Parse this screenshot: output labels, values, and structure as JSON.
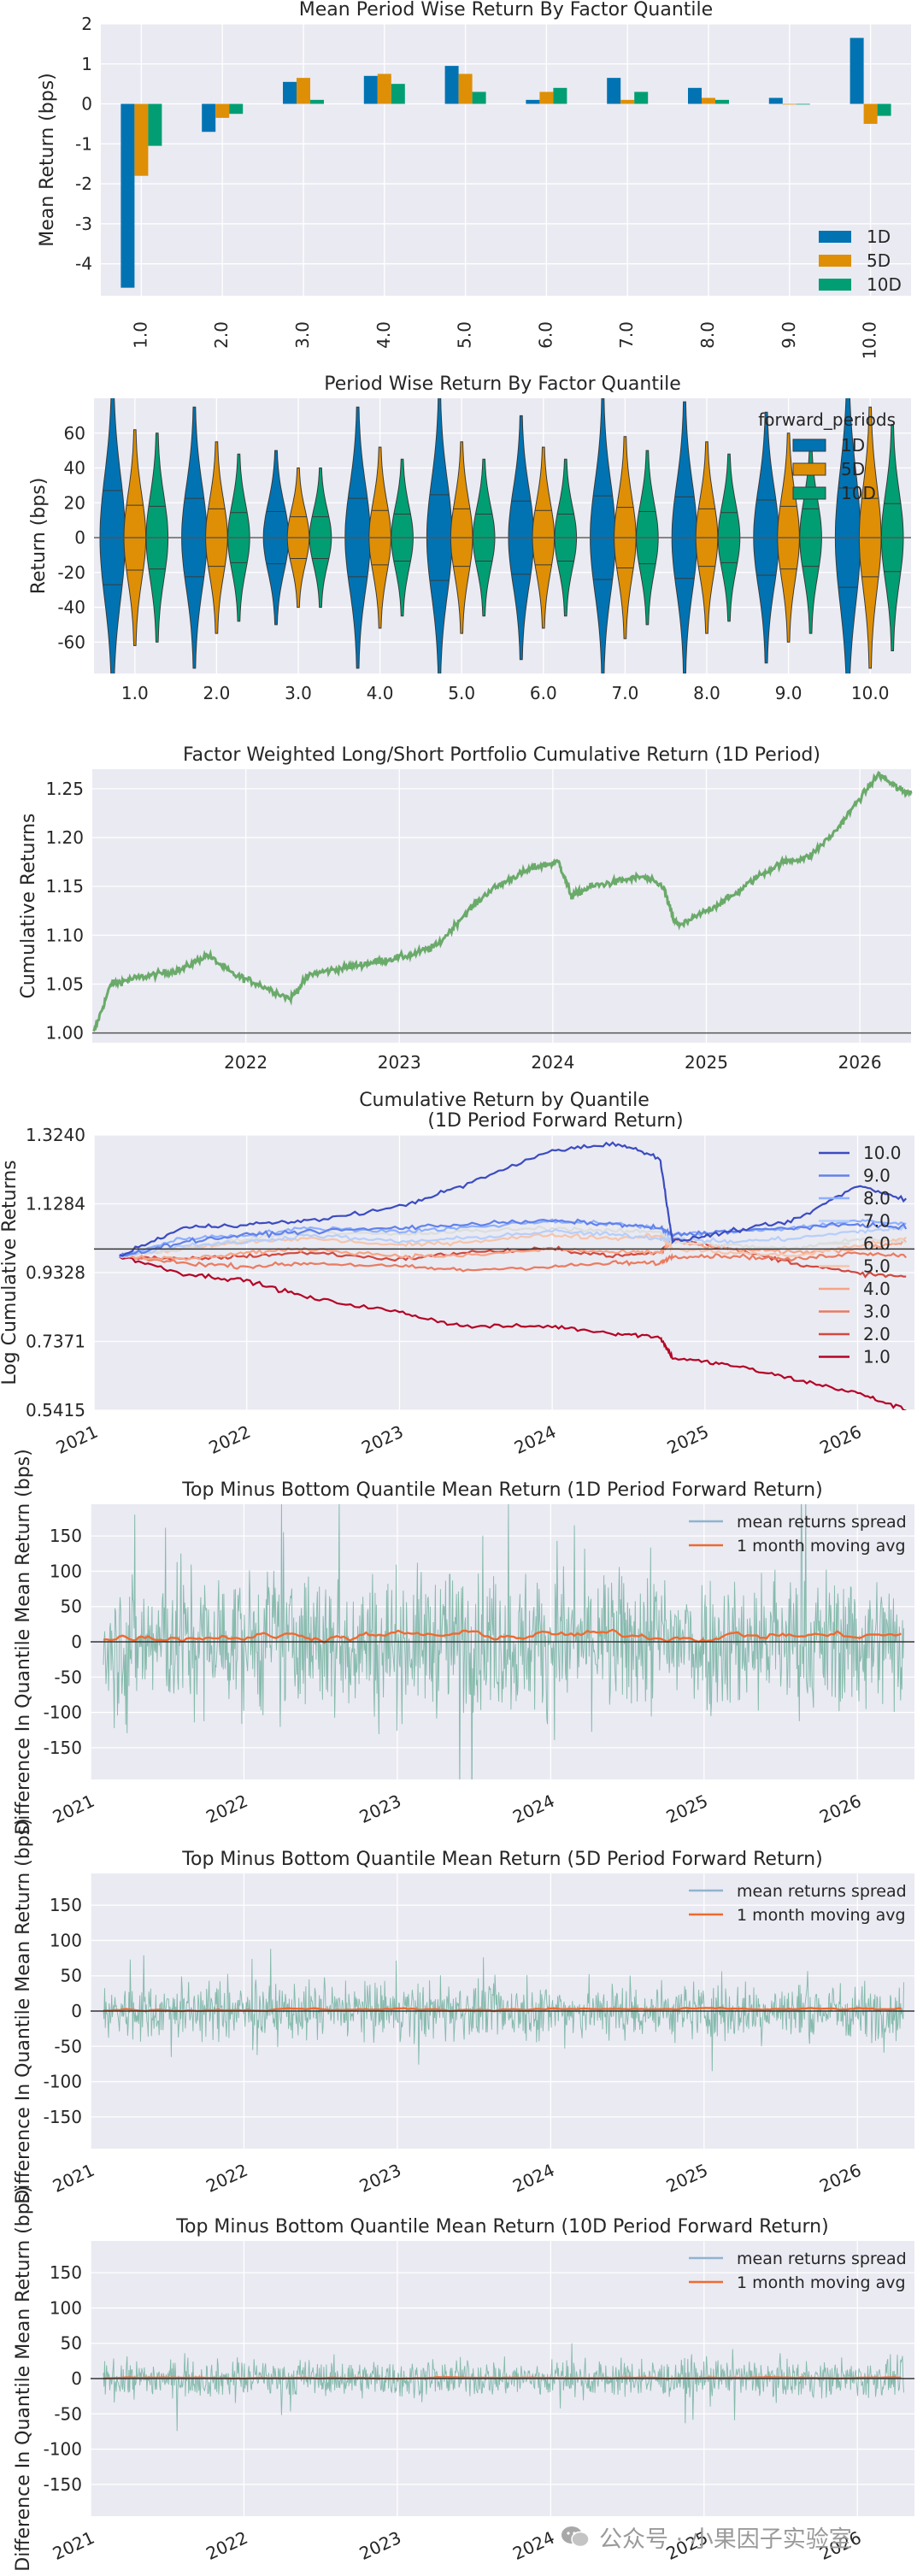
{
  "colors": {
    "panel_bg": "#eaeaf2",
    "grid": "#ffffff",
    "text": "#262626",
    "blue": "#0173b2",
    "orange": "#de8f05",
    "green": "#029e73",
    "long_short": "#6aaa6a",
    "spread_blue": "#8fb4cf",
    "spread_green": "#74b88f",
    "moving_avg": "#ee6a30",
    "baseline": "#555555",
    "quantile_colors": [
      "#b40426",
      "#d1493f",
      "#ea7b60",
      "#f6a385",
      "#f5c4ac",
      "#dcdddd",
      "#b6cefa",
      "#8db0fe",
      "#6282ea",
      "#3b4cc0"
    ]
  },
  "watermark": {
    "text": "公众号 · 小果因子实验室",
    "icon": "wechat-icon"
  },
  "chart_data": [
    {
      "id": "mean_period_wise",
      "type": "bar",
      "title": "Mean Period Wise Return By Factor Quantile",
      "xlabel": "",
      "ylabel": "Mean Return (bps)",
      "ylim": [
        -4.8,
        2.0
      ],
      "yticks": [
        2,
        1,
        0,
        -1,
        -2,
        -3,
        -4
      ],
      "categories": [
        "1.0",
        "2.0",
        "3.0",
        "4.0",
        "5.0",
        "6.0",
        "7.0",
        "8.0",
        "9.0",
        "10.0"
      ],
      "series": [
        {
          "name": "1D",
          "values": [
            -4.6,
            -0.7,
            0.55,
            0.7,
            0.95,
            0.1,
            0.65,
            0.4,
            0.15,
            1.65
          ]
        },
        {
          "name": "5D",
          "values": [
            -1.8,
            -0.35,
            0.65,
            0.75,
            0.75,
            0.3,
            0.1,
            0.15,
            0.0,
            -0.5
          ]
        },
        {
          "name": "10D",
          "values": [
            -1.05,
            -0.25,
            0.1,
            0.5,
            0.3,
            0.4,
            0.3,
            0.1,
            0.0,
            -0.3
          ]
        }
      ],
      "legend": {
        "entries": [
          "1D",
          "5D",
          "10D"
        ],
        "position": "lower-right"
      },
      "grid": true
    },
    {
      "id": "violin",
      "type": "violin",
      "title": "Period Wise Return By Factor Quantile",
      "xlabel": "",
      "ylabel": "Return (bps)",
      "ylim": [
        -78,
        80
      ],
      "yticks": [
        60,
        40,
        20,
        0,
        -20,
        -40,
        -60
      ],
      "categories": [
        "1.0",
        "2.0",
        "3.0",
        "4.0",
        "5.0",
        "6.0",
        "7.0",
        "8.0",
        "9.0",
        "10.0"
      ],
      "series": [
        {
          "name": "1D",
          "extent": [
            [
              -90,
              90
            ],
            [
              -75,
              75
            ],
            [
              -50,
              50
            ],
            [
              -75,
              75
            ],
            [
              -82,
              82
            ],
            [
              -70,
              70
            ],
            [
              -80,
              80
            ],
            [
              -78,
              78
            ],
            [
              -72,
              72
            ],
            [
              -95,
              95
            ]
          ]
        },
        {
          "name": "5D",
          "extent": [
            [
              -62,
              62
            ],
            [
              -55,
              55
            ],
            [
              -40,
              40
            ],
            [
              -52,
              52
            ],
            [
              -55,
              55
            ],
            [
              -52,
              52
            ],
            [
              -58,
              58
            ],
            [
              -55,
              55
            ],
            [
              -60,
              60
            ],
            [
              -75,
              75
            ]
          ]
        },
        {
          "name": "10D",
          "extent": [
            [
              -60,
              60
            ],
            [
              -48,
              48
            ],
            [
              -40,
              40
            ],
            [
              -45,
              45
            ],
            [
              -45,
              45
            ],
            [
              -45,
              45
            ],
            [
              -50,
              50
            ],
            [
              -48,
              48
            ],
            [
              -55,
              55
            ],
            [
              -65,
              65
            ]
          ]
        }
      ],
      "legend": {
        "title": "forward_periods",
        "entries": [
          "1D",
          "5D",
          "10D"
        ],
        "position": "upper-right"
      },
      "grid": true
    },
    {
      "id": "long_short",
      "type": "line",
      "title": "Factor Weighted Long/Short Portfolio Cumulative Return (1D Period)",
      "xlabel": "",
      "ylabel": "Cumulative Returns",
      "xlim": [
        "2021-01-01",
        "2026-05-01"
      ],
      "xticks": [
        "2022",
        "2023",
        "2024",
        "2025",
        "2026"
      ],
      "ylim": [
        0.99,
        1.27
      ],
      "yticks": [
        1.25,
        1.2,
        1.15,
        1.1,
        1.05,
        1.0
      ],
      "series": [
        {
          "name": "",
          "x": [
            "2021-01-04",
            "2021-02-15",
            "2021-04-01",
            "2021-06-01",
            "2021-08-01",
            "2021-10-01",
            "2021-12-01",
            "2022-02-01",
            "2022-04-15",
            "2022-06-01",
            "2022-08-01",
            "2022-10-01",
            "2022-12-01",
            "2023-02-01",
            "2023-04-01",
            "2023-06-01",
            "2023-08-01",
            "2023-10-01",
            "2023-11-20",
            "2024-01-15",
            "2024-02-15",
            "2024-04-01",
            "2024-06-01",
            "2024-08-01",
            "2024-09-20",
            "2024-10-15",
            "2024-11-01",
            "2025-01-01",
            "2025-03-01",
            "2025-05-01",
            "2025-07-01",
            "2025-09-01",
            "2025-11-01",
            "2026-01-01",
            "2026-02-15",
            "2026-04-01",
            "2026-05-01"
          ],
          "values": [
            1.0,
            1.05,
            1.055,
            1.06,
            1.065,
            1.08,
            1.06,
            1.05,
            1.035,
            1.06,
            1.065,
            1.07,
            1.075,
            1.08,
            1.09,
            1.12,
            1.145,
            1.16,
            1.17,
            1.175,
            1.14,
            1.15,
            1.155,
            1.16,
            1.15,
            1.115,
            1.11,
            1.125,
            1.14,
            1.16,
            1.175,
            1.18,
            1.205,
            1.24,
            1.265,
            1.25,
            1.245
          ]
        }
      ],
      "baseline": 1.0,
      "grid": true
    },
    {
      "id": "cumret_quantile",
      "type": "line",
      "title": "Cumulative Return by Quantile",
      "subtitle": "(1D Period Forward Return)",
      "xlabel": "",
      "ylabel": "Log Cumulative Returns",
      "xlim": [
        "2021-01-01",
        "2026-05-15"
      ],
      "xticks": [
        "2021",
        "2022",
        "2023",
        "2024",
        "2025",
        "2026"
      ],
      "ylim": [
        0.5415,
        1.324
      ],
      "yticks": [
        1.324,
        1.1284,
        0.9328,
        0.7371,
        0.5415
      ],
      "x": [
        "2021-03-01",
        "2021-08-01",
        "2022-01-01",
        "2022-06-01",
        "2023-01-01",
        "2023-06-01",
        "2024-01-01",
        "2024-06-01",
        "2024-09-15",
        "2024-10-15",
        "2025-03-01",
        "2025-08-01",
        "2026-01-01",
        "2026-05-01"
      ],
      "series": [
        {
          "name": "10.0",
          "values": [
            0.98,
            1.06,
            1.07,
            1.08,
            1.12,
            1.18,
            1.28,
            1.3,
            1.26,
            1.02,
            1.05,
            1.08,
            1.18,
            1.14
          ]
        },
        {
          "name": "9.0",
          "values": [
            0.98,
            1.02,
            1.04,
            1.05,
            1.06,
            1.07,
            1.08,
            1.07,
            1.06,
            1.04,
            1.05,
            1.06,
            1.07,
            1.06
          ]
        },
        {
          "name": "8.0",
          "values": [
            0.98,
            1.03,
            1.04,
            1.06,
            1.05,
            1.06,
            1.08,
            1.07,
            1.06,
            1.04,
            1.05,
            1.06,
            1.08,
            1.07
          ]
        },
        {
          "name": "7.0",
          "values": [
            0.98,
            1.01,
            1.02,
            1.04,
            1.02,
            1.03,
            1.05,
            1.04,
            1.03,
            1.03,
            1.02,
            1.03,
            1.05,
            1.06
          ]
        },
        {
          "name": "6.0",
          "values": [
            0.98,
            1.0,
            1.03,
            1.05,
            1.04,
            1.05,
            1.06,
            1.05,
            1.05,
            1.02,
            1.01,
            1.0,
            1.03,
            1.02
          ]
        },
        {
          "name": "5.0",
          "values": [
            0.98,
            1.0,
            1.02,
            1.03,
            1.01,
            1.02,
            1.04,
            1.03,
            1.04,
            1.0,
            0.99,
            0.98,
            1.01,
            1.03
          ]
        },
        {
          "name": "4.0",
          "values": [
            0.98,
            0.97,
            0.99,
            1.0,
            0.98,
            0.98,
            1.0,
            0.99,
            0.99,
            1.02,
            1.0,
            0.99,
            1.0,
            1.02
          ]
        },
        {
          "name": "3.0",
          "values": [
            0.98,
            0.96,
            0.95,
            0.96,
            0.95,
            0.94,
            0.95,
            0.96,
            0.96,
            0.98,
            0.98,
            0.97,
            0.99,
            0.98
          ]
        },
        {
          "name": "2.0",
          "values": [
            0.98,
            0.97,
            0.98,
            0.99,
            0.97,
            0.99,
            1.0,
            0.98,
            0.99,
            1.03,
            1.0,
            0.96,
            0.93,
            0.92
          ]
        },
        {
          "name": "1.0",
          "values": [
            0.98,
            0.93,
            0.91,
            0.86,
            0.82,
            0.78,
            0.78,
            0.76,
            0.75,
            0.69,
            0.67,
            0.63,
            0.59,
            0.54
          ]
        }
      ],
      "legend": {
        "entries": [
          "10.0",
          "9.0",
          "8.0",
          "7.0",
          "6.0",
          "5.0",
          "4.0",
          "3.0",
          "2.0",
          "1.0"
        ],
        "position": "right"
      },
      "baseline": 1.0,
      "grid": true
    },
    {
      "id": "spread_1d",
      "type": "line",
      "title": "Top Minus Bottom Quantile Mean Return (1D Period Forward Return)",
      "xlabel": "",
      "ylabel": "Difference In Quantile Mean Return (bps)",
      "xlim": [
        "2021-01-01",
        "2026-05-15"
      ],
      "xticks": [
        "2021",
        "2022",
        "2023",
        "2024",
        "2025",
        "2026"
      ],
      "ylim": [
        -195,
        195
      ],
      "yticks": [
        150,
        100,
        50,
        0,
        -50,
        -100,
        -150
      ],
      "amplitude": 175,
      "ma_amplitude": 26,
      "series": [
        {
          "name": "mean returns spread"
        },
        {
          "name": "1 month moving avg"
        }
      ],
      "legend": {
        "entries": [
          "mean returns spread",
          "1 month moving avg"
        ],
        "position": "upper-right"
      },
      "baseline": 0,
      "grid": true
    },
    {
      "id": "spread_5d",
      "type": "line",
      "title": "Top Minus Bottom Quantile Mean Return (5D Period Forward Return)",
      "xlabel": "",
      "ylabel": "Difference In Quantile Mean Return (bps)",
      "xlim": [
        "2021-01-01",
        "2026-05-15"
      ],
      "xticks": [
        "2021",
        "2022",
        "2023",
        "2024",
        "2025",
        "2026"
      ],
      "ylim": [
        -195,
        195
      ],
      "yticks": [
        150,
        100,
        50,
        0,
        -50,
        -100,
        -150
      ],
      "amplitude": 70,
      "ma_amplitude": 7,
      "series": [
        {
          "name": "mean returns spread"
        },
        {
          "name": "1 month moving avg"
        }
      ],
      "legend": {
        "entries": [
          "mean returns spread",
          "1 month moving avg"
        ],
        "position": "upper-right"
      },
      "baseline": 0,
      "grid": true
    },
    {
      "id": "spread_10d",
      "type": "line",
      "title": "Top Minus Bottom Quantile Mean Return (10D Period Forward Return)",
      "xlabel": "",
      "ylabel": "Difference In Quantile Mean Return (bps)",
      "xlim": [
        "2021-01-01",
        "2026-05-15"
      ],
      "xticks": [
        "2021",
        "2022",
        "2023",
        "2024",
        "2025",
        "2026"
      ],
      "ylim": [
        -195,
        195
      ],
      "yticks": [
        150,
        100,
        50,
        0,
        -50,
        -100,
        -150
      ],
      "amplitude": 45,
      "ma_amplitude": 3,
      "series": [
        {
          "name": "mean returns spread"
        },
        {
          "name": "1 month moving avg"
        }
      ],
      "legend": {
        "entries": [
          "mean returns spread",
          "1 month moving avg"
        ],
        "position": "upper-right"
      },
      "baseline": 0,
      "grid": true
    }
  ]
}
